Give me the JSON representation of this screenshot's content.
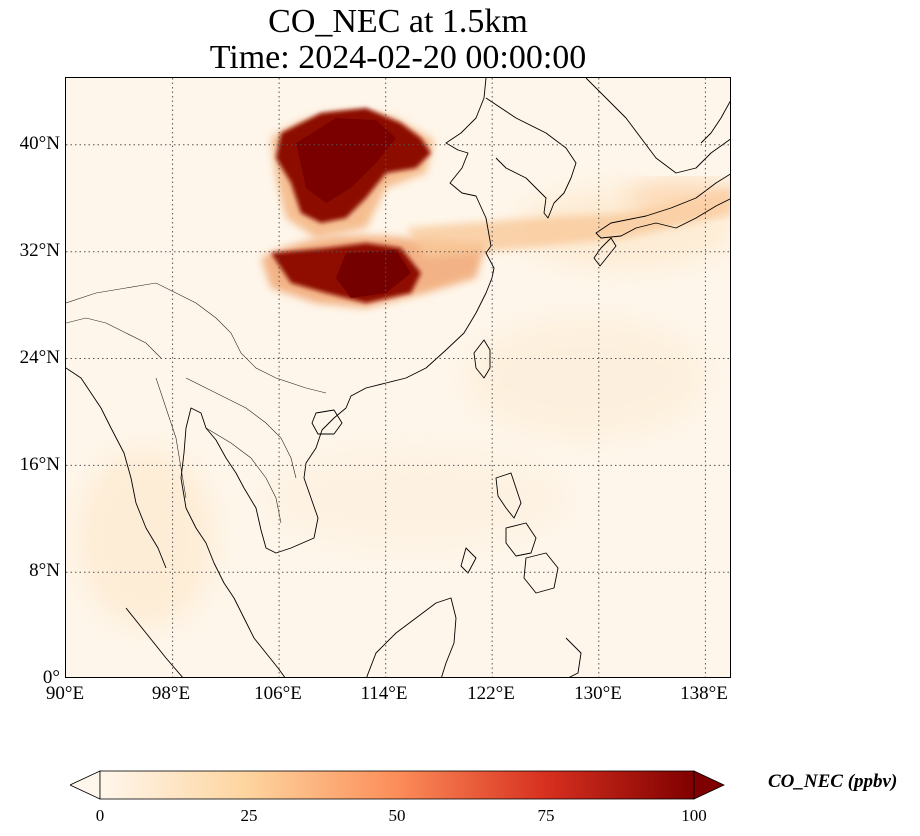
{
  "title": {
    "line1": "CO_NEC at 1.5km",
    "line2": "Time: 2024-02-20 00:00:00"
  },
  "map": {
    "projection": "PlateCarree",
    "lon_range": [
      90,
      140
    ],
    "lat_range": [
      0,
      45
    ],
    "gridlines": true,
    "gridline_style": "dotted",
    "lon_ticks": [
      "90°E",
      "98°E",
      "106°E",
      "114°E",
      "122°E",
      "130°E",
      "138°E"
    ],
    "lat_ticks": [
      "0°",
      "8°N",
      "16°N",
      "24°N",
      "32°N",
      "40°N"
    ],
    "field": "CO_NEC",
    "colormap": "OrRd",
    "plume_regions": [
      {
        "name": "north-china-plume",
        "lon_center": 110,
        "lat_center": 39.5
      },
      {
        "name": "central-china-plume",
        "lon_center": 111,
        "lat_center": 30.5
      },
      {
        "name": "east-sea-band",
        "lon_center": 124,
        "lat_center": 33
      }
    ]
  },
  "colorbar": {
    "label": "CO_NEC (ppbv)",
    "min": 0,
    "max": 100,
    "extend": "both",
    "ticks": [
      "0",
      "25",
      "50",
      "75",
      "100"
    ],
    "colors": [
      "#fff7ec",
      "#fdd49e",
      "#fc8d59",
      "#d7301f",
      "#7f0000"
    ]
  }
}
